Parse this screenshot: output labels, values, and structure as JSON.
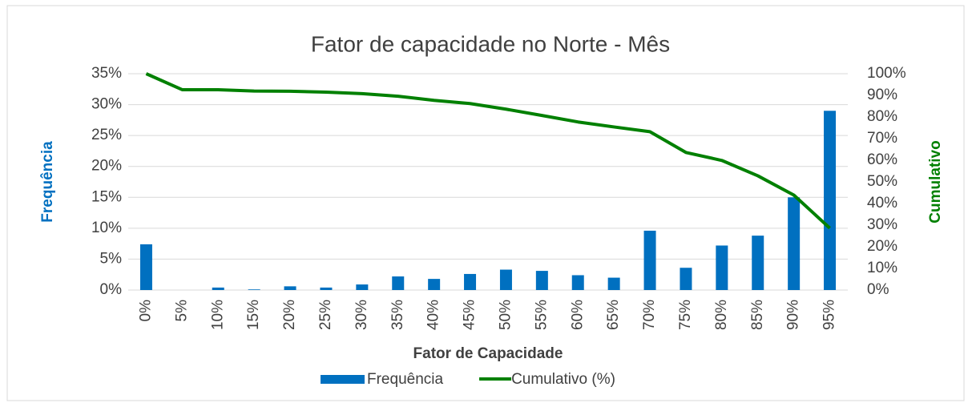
{
  "chart_data": {
    "type": "bar",
    "title": "Fator de capacidade no Norte - Mês",
    "x_label": "Fator de Capacidade",
    "y_label": "Frequência",
    "y2_label": "Cumulativo",
    "categories": [
      "0%",
      "5%",
      "10%",
      "15%",
      "20%",
      "25%",
      "30%",
      "35%",
      "40%",
      "45%",
      "50%",
      "55%",
      "60%",
      "65%",
      "70%",
      "75%",
      "80%",
      "85%",
      "90%",
      "95%"
    ],
    "series": [
      {
        "name": "Frequência",
        "type": "bar",
        "color": "#0070c0",
        "values": [
          7.4,
          0,
          0.4,
          0.1,
          0.6,
          0.4,
          0.9,
          2.2,
          1.8,
          2.6,
          3.3,
          3.1,
          2.4,
          2.0,
          9.6,
          3.6,
          7.2,
          8.8,
          15.0,
          29.0
        ]
      },
      {
        "name": "Cumulativo (%)",
        "type": "line",
        "axis": "y2",
        "color": "#008000",
        "values": [
          100,
          92.6,
          92.6,
          92.0,
          91.9,
          91.5,
          90.8,
          89.6,
          87.7,
          86.2,
          83.6,
          80.7,
          77.7,
          75.4,
          73.2,
          63.6,
          59.9,
          52.8,
          43.9,
          28.6
        ]
      }
    ],
    "ylim": [
      0,
      35
    ],
    "yticks": [
      {
        "value": 0,
        "label": "0%"
      },
      {
        "value": 5,
        "label": "5%"
      },
      {
        "value": 10,
        "label": "10%"
      },
      {
        "value": 15,
        "label": "15%"
      },
      {
        "value": 20,
        "label": "20%"
      },
      {
        "value": 25,
        "label": "25%"
      },
      {
        "value": 30,
        "label": "30%"
      },
      {
        "value": 35,
        "label": "35%"
      }
    ],
    "y2lim": [
      0,
      100
    ],
    "y2ticks": [
      {
        "value": 0,
        "label": "0%"
      },
      {
        "value": 10,
        "label": "10%"
      },
      {
        "value": 20,
        "label": "20%"
      },
      {
        "value": 30,
        "label": "30%"
      },
      {
        "value": 40,
        "label": "40%"
      },
      {
        "value": 50,
        "label": "50%"
      },
      {
        "value": 60,
        "label": "60%"
      },
      {
        "value": 70,
        "label": "70%"
      },
      {
        "value": 80,
        "label": "80%"
      },
      {
        "value": 90,
        "label": "90%"
      },
      {
        "value": 100,
        "label": "100%"
      }
    ],
    "grid": true,
    "legend": "bottom"
  }
}
